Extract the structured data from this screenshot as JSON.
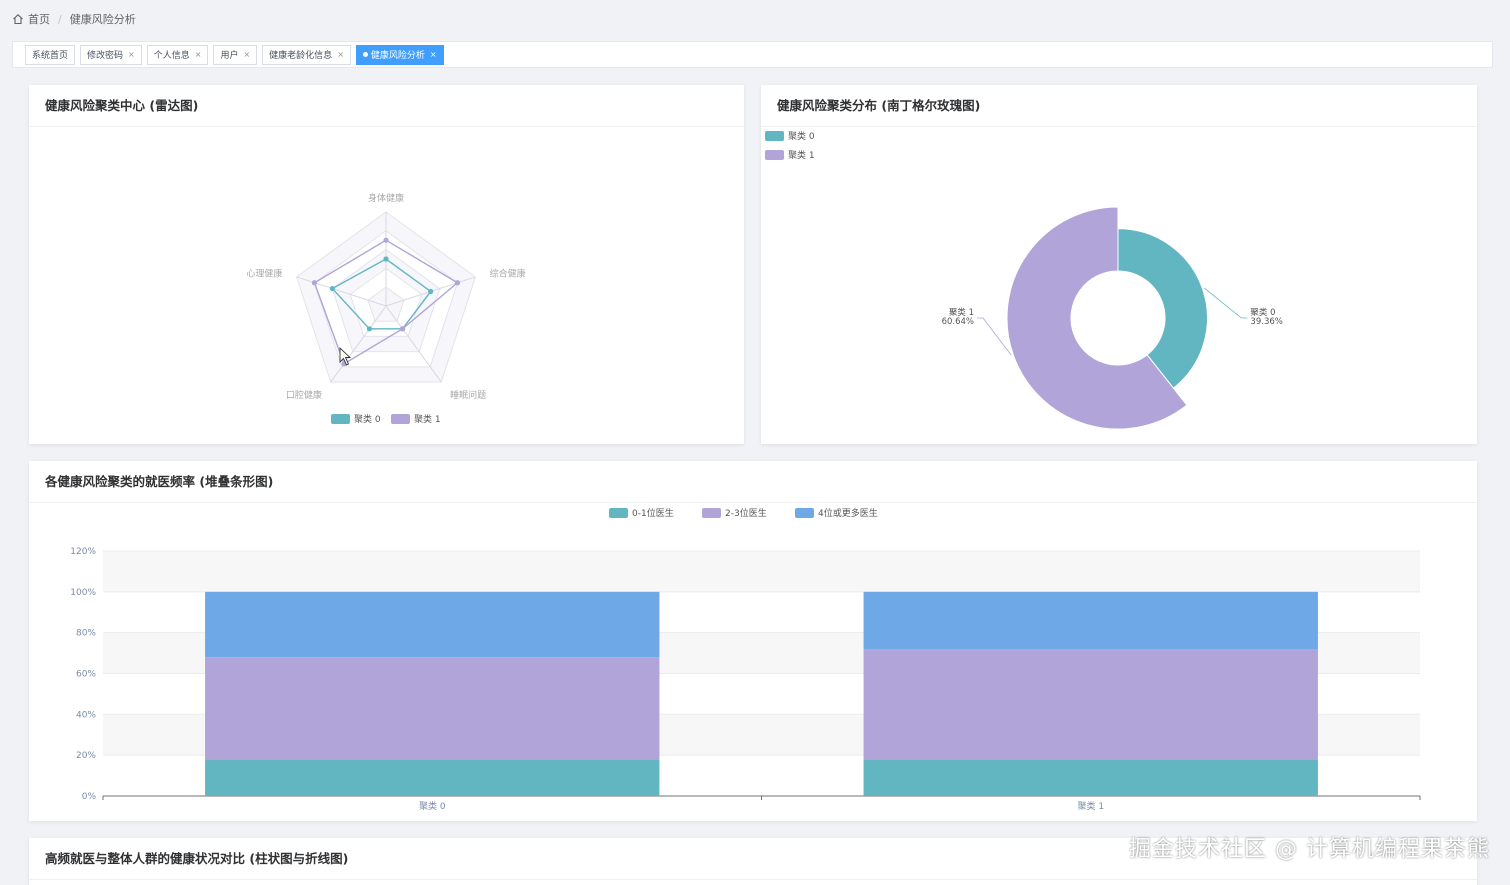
{
  "breadcrumb": {
    "home": "首页",
    "current": "健康风险分析"
  },
  "tabs": [
    {
      "label": "系统首页",
      "closable": false,
      "active": false
    },
    {
      "label": "修改密码",
      "closable": true,
      "active": false
    },
    {
      "label": "个人信息",
      "closable": true,
      "active": false
    },
    {
      "label": "用户",
      "closable": true,
      "active": false
    },
    {
      "label": "健康老龄化信息",
      "closable": true,
      "active": false
    },
    {
      "label": "健康风险分析",
      "closable": true,
      "active": true
    }
  ],
  "colors": {
    "cluster0": "#62b6c2",
    "cluster1": "#b0a4d8",
    "series3": "#6fa8e6",
    "accent": "#409eff"
  },
  "cards": {
    "radar_title": "健康风险聚类中心 (雷达图)",
    "rose_title": "健康风险聚类分布 (南丁格尔玫瑰图)",
    "bar_title": "各健康风险聚类的就医频率 (堆叠条形图)",
    "compare_title": "高频就医与整体人群的健康状况对比 (柱状图与折线图)"
  },
  "chart_data": [
    {
      "type": "radar",
      "indicators": [
        "身体健康",
        "综合健康",
        "睡眠问题",
        "口腔健康",
        "心理健康"
      ],
      "max": 5,
      "series": [
        {
          "name": "聚类 0",
          "values": [
            2.5,
            2.5,
            1.5,
            1.5,
            3.0
          ]
        },
        {
          "name": "聚类 1",
          "values": [
            3.5,
            4.0,
            1.5,
            3.8,
            4.0
          ]
        }
      ],
      "legend": "bottom"
    },
    {
      "type": "pie",
      "rose": true,
      "slices": [
        {
          "name": "聚类 0",
          "value": 39.36,
          "label": "聚类 0\n39.36%"
        },
        {
          "name": "聚类 1",
          "value": 60.64,
          "label": "聚类 1\n60.64%"
        }
      ],
      "legend": "top-left"
    },
    {
      "type": "bar",
      "stacked": true,
      "categories": [
        "聚类 0",
        "聚类 1"
      ],
      "series": [
        {
          "name": "0-1位医生",
          "values": [
            18,
            18
          ]
        },
        {
          "name": "2-3位医生",
          "values": [
            50,
            54
          ]
        },
        {
          "name": "4位或更多医生",
          "values": [
            32,
            28
          ]
        }
      ],
      "yticks": [
        "0%",
        "20%",
        "40%",
        "60%",
        "80%",
        "100%",
        "120%"
      ],
      "ylim": [
        0,
        120
      ],
      "legend": "top"
    }
  ],
  "watermark": "掘金技术社区 @ 计算机编程果茶熊"
}
